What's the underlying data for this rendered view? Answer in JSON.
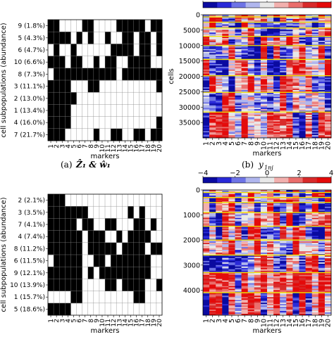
{
  "chart_data": [
    {
      "type": "heatmap",
      "panel": "top-left",
      "ylabel": "cell subpopulations (abundance)",
      "xlabel": "markers",
      "x": [
        "1",
        "2",
        "3",
        "4",
        "5",
        "6",
        "7",
        "8",
        "9",
        "10",
        "11",
        "12",
        "13",
        "14",
        "15",
        "16",
        "17",
        "18",
        "19",
        "20"
      ],
      "rows": [
        "9 (1.8%)",
        "5 (4.3%)",
        "6 (4.7%)",
        "10 (6.6%)",
        "8 (7.3%)",
        "3 (11.1%)",
        "2 (13.0%)",
        "1 (13.4%)",
        "4 (16.0%)",
        "7 (21.7%)"
      ],
      "matrix": [
        "11000011000011111011",
        "11110101001001101101",
        "01001000000111101101",
        "11101100101100111100",
        "01111111111101111111",
        "11110001100000000001",
        "11111000000000000000",
        "11110000000000000000",
        "11110000000000000001",
        "11100000100110011011"
      ]
    },
    {
      "type": "heatmap",
      "panel": "top-right",
      "ylabel": "cells",
      "xlabel": "markers",
      "x": [
        "1",
        "2",
        "3",
        "4",
        "5",
        "6",
        "7",
        "8",
        "9",
        "10",
        "11",
        "12",
        "13",
        "14",
        "15",
        "16",
        "17",
        "18",
        "19",
        "20"
      ],
      "y_ticks": [
        0,
        5000,
        10000,
        15000,
        20000,
        25000,
        30000,
        35000
      ],
      "ylim": [
        0,
        40000
      ],
      "colorbar": {
        "ticks": [
          -4,
          -2,
          0,
          2,
          4
        ],
        "range": [
          -4,
          4
        ]
      },
      "cluster_boundaries": [
        700,
        2400,
        4300,
        7000,
        10000,
        14500,
        19800,
        25200,
        31600
      ],
      "caption": "(b) y_{1nj}",
      "caption_label": "(b)",
      "caption_math": "y",
      "caption_sub": "1nj"
    },
    {
      "type": "heatmap",
      "panel": "bottom-left",
      "ylabel": "cell subpopulations (abundance)",
      "xlabel": "markers",
      "x": [
        "1",
        "2",
        "3",
        "4",
        "5",
        "6",
        "7",
        "8",
        "9",
        "10",
        "11",
        "12",
        "13",
        "14",
        "15",
        "16",
        "17",
        "18",
        "19",
        "20"
      ],
      "rows": [
        "2 (2.1%)",
        "3 (3.5%)",
        "7 (4.1%)",
        "4 (7.4%)",
        "8 (11.2%)",
        "6 (11.5%)",
        "9 (12.1%)",
        "10 (13.9%)",
        "1 (15.7%)",
        "5 (18.6%)"
      ],
      "matrix": [
        "11100000000000000000",
        "11111110000000101000",
        "11111011001100011010",
        "11111101110010111100",
        "11111101111101111011",
        "01111100110111111100",
        "11111101011111111100",
        "11111100001101111001",
        "00001100000000011000",
        "11110000000000000000"
      ]
    },
    {
      "type": "heatmap",
      "panel": "bottom-right",
      "xlabel": "markers",
      "x": [
        "1",
        "2",
        "3",
        "4",
        "5",
        "6",
        "7",
        "8",
        "9",
        "10",
        "11",
        "12",
        "13",
        "14",
        "15",
        "16",
        "17",
        "18",
        "19",
        "20"
      ],
      "y_ticks": [
        0,
        1000,
        2000,
        3000,
        4000
      ],
      "ylim": [
        0,
        5000
      ],
      "colorbar": {
        "ticks": [
          -4,
          -2,
          0,
          2,
          4
        ],
        "range": [
          -4,
          4
        ]
      },
      "cluster_boundaries": [
        100,
        300,
        500,
        900,
        1450,
        2000,
        2600,
        3300,
        4100
      ]
    }
  ],
  "captions": {
    "a_label": "(a)",
    "a_math": "Ẑ₁ & ŵ₁",
    "b_text": "(b) y_{1nj}"
  },
  "colors": {
    "black": "#000000",
    "grid": "#888888",
    "boundary": "#f2e600",
    "cmap": [
      "#0a0aa0",
      "#2a2ad8",
      "#6e74e6",
      "#b0b6ee",
      "#e8e8e8",
      "#f2b0ae",
      "#ea6e6c",
      "#d82a2a",
      "#e40a0a"
    ]
  }
}
